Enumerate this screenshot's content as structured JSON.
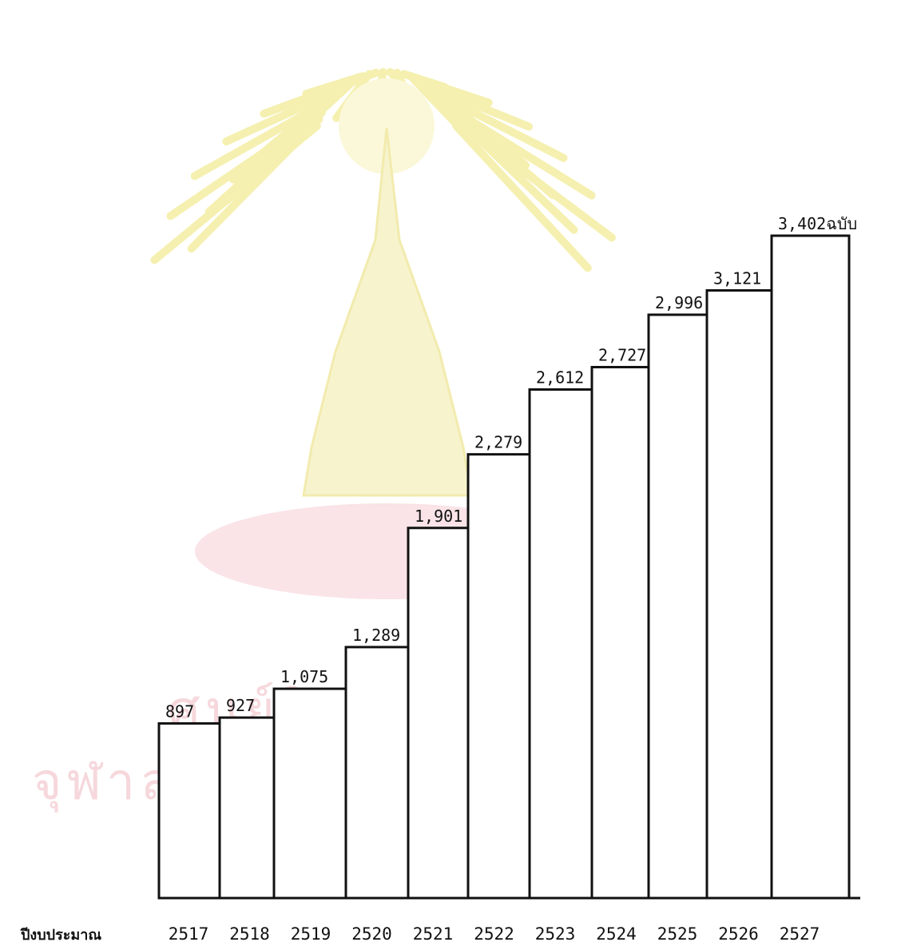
{
  "watermark": {
    "line1": "ศูนย์วิทยทรัพยากร",
    "line2": "จุฬาลงกรณ์มหาวิทยาลัย"
  },
  "chart_data": {
    "type": "bar",
    "xlabel": "ปีงบประมาณ",
    "unit_suffix": "ฉบับ",
    "categories": [
      "2517",
      "2518",
      "2519",
      "2520",
      "2521",
      "2522",
      "2523",
      "2524",
      "2525",
      "2526",
      "2527"
    ],
    "values": [
      897,
      927,
      1075,
      1289,
      1901,
      2279,
      2612,
      2727,
      2996,
      3121,
      3402
    ],
    "value_labels": [
      "897",
      "927",
      "1,075",
      "1,289",
      "1,901",
      "2,279",
      "2,612",
      "2,727",
      "2,996",
      "3,121",
      "3,402ฉบับ"
    ],
    "ylim": [
      0,
      3402
    ],
    "grid": false,
    "legend": "none",
    "colors": {
      "bar_fill": "#ffffff",
      "bar_stroke": "#111111",
      "watermark_emblem": "#f4efa8",
      "watermark_text": "#f6d8dc"
    }
  }
}
